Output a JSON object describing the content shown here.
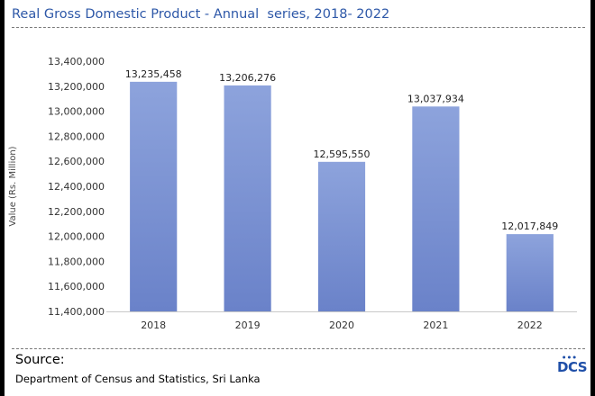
{
  "title": "Real Gross Domestic Product - Annual  series, 2018- 2022",
  "source": {
    "label": "Source:",
    "text": "Department of Census and Statistics, Sri Lanka"
  },
  "logo": {
    "text": "DCS",
    "icon": "dcs-logo"
  },
  "colors": {
    "bar_top": "#8da3dc",
    "bar_bottom": "#6a82c9",
    "title": "#2e58a8",
    "logo": "#1f4fa8"
  },
  "chart_data": {
    "type": "bar",
    "title": "Real Gross Domestic Product - Annual  series, 2018- 2022",
    "xlabel": "",
    "ylabel": "Value (Rs. Million)",
    "categories": [
      "2018",
      "2019",
      "2020",
      "2021",
      "2022"
    ],
    "values": [
      13235458,
      13206276,
      12595550,
      13037934,
      12017849
    ],
    "data_labels": [
      "13,235,458",
      "13,206,276",
      "12,595,550",
      "13,037,934",
      "12,017,849"
    ],
    "ylim": [
      11400000,
      13400000
    ],
    "yticks": [
      11400000,
      11600000,
      11800000,
      12000000,
      12200000,
      12400000,
      12600000,
      12800000,
      13000000,
      13200000,
      13400000
    ],
    "ytick_labels": [
      "11,400,000",
      "11,600,000",
      "11,800,000",
      "12,000,000",
      "12,200,000",
      "12,400,000",
      "12,600,000",
      "12,800,000",
      "13,000,000",
      "13,200,000",
      "13,400,000"
    ],
    "grid": false,
    "legend": "none"
  }
}
